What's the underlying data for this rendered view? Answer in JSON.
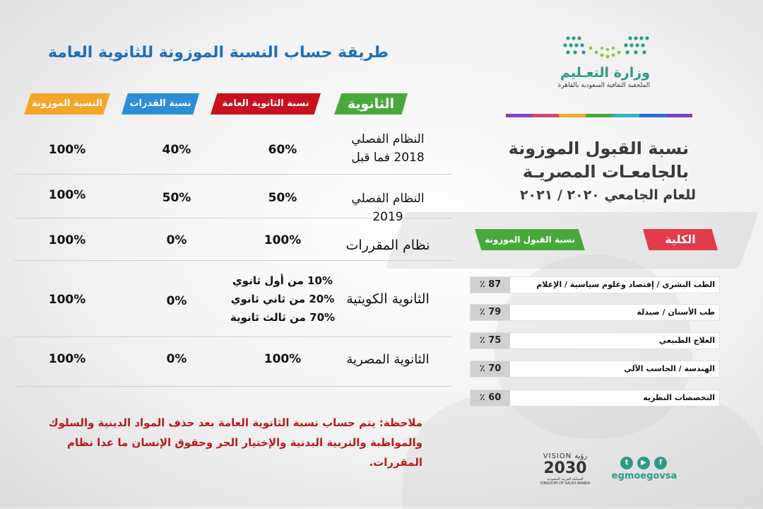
{
  "main_title": "طريقة حساب النسبة الموزونة للثانوية العامة",
  "headers": {
    "secondary": "الثانوية",
    "general_pct": "نسبة الثانوية العامة",
    "aptitude_pct": "نسبة القدرات",
    "weighted_pct": "النسبة الموزونة"
  },
  "rows": [
    {
      "system_line1": "النظام الفصلي",
      "system_line2": "2018 فما قبل",
      "general": "60%",
      "aptitude": "40%",
      "weighted": "100%"
    },
    {
      "system": "النظام الفصلي 2019",
      "general": "50%",
      "aptitude": "50%",
      "weighted": "100%"
    },
    {
      "system": "نظام المقررات",
      "general": "100%",
      "aptitude": "0%",
      "weighted": "100%"
    },
    {
      "system": "الثانوية الكويتية",
      "general_lines": [
        "10% من أول ثانوي",
        "20% من ثاني ثانوي",
        "70% من ثالث ثانوية"
      ],
      "aptitude": "0%",
      "weighted": "100%"
    },
    {
      "system": "الثانوية المصرية",
      "general": "100%",
      "aptitude": "0%",
      "weighted": "100%"
    }
  ],
  "note_line1": "ملاحظة: يتم حساب نسبة الثانوية العامة بعد حذف المواد الدينية والسلوك",
  "note_line2": "والمواظبة والتربية البدنية والإختيار الحر وحقوق الإنسان ما عدا نظام المقررات.",
  "ministry": {
    "name": "وزارة التعـليم",
    "sub": "الملحقية الثقافية السعودية بالقاهرة"
  },
  "accent_colors": [
    "#8a3fbf",
    "#d6456a",
    "#f4a62a",
    "#49a83b",
    "#2fb3c4",
    "#2b6fd6",
    "#7b3fbf"
  ],
  "right_title_line1": "نسبة القبول الموزونة",
  "right_title_line2": "بالجامعـات المصريـة",
  "right_title_line3": "للعام الجامعي ٢٠٢٠ / ٢٠٢١",
  "right_headers": {
    "college": "الكلية",
    "rate": "نسبة القبول الموزونة"
  },
  "colleges": [
    {
      "name": "الطب البشري / إقتصاد وعلوم سياسية / الإعلام",
      "rate": "87 ٪"
    },
    {
      "name": "طب الأسنان / صيدلة",
      "rate": "79 ٪"
    },
    {
      "name": "العلاج الطبيعي",
      "rate": "75 ٪"
    },
    {
      "name": "الهندسة / الحاسب الآلي",
      "rate": "70 ٪"
    },
    {
      "name": "التخصصات النظرية",
      "rate": "60 ٪"
    }
  ],
  "vision": {
    "top": "VISION رؤية",
    "year": "2030",
    "bottom": "المملكة العربية السعودية KINGDOM OF SAUDI ARABIA"
  },
  "social_icons": [
    "twitter-icon",
    "youtube-icon",
    "facebook-icon"
  ],
  "handle": "egmoegovsa"
}
